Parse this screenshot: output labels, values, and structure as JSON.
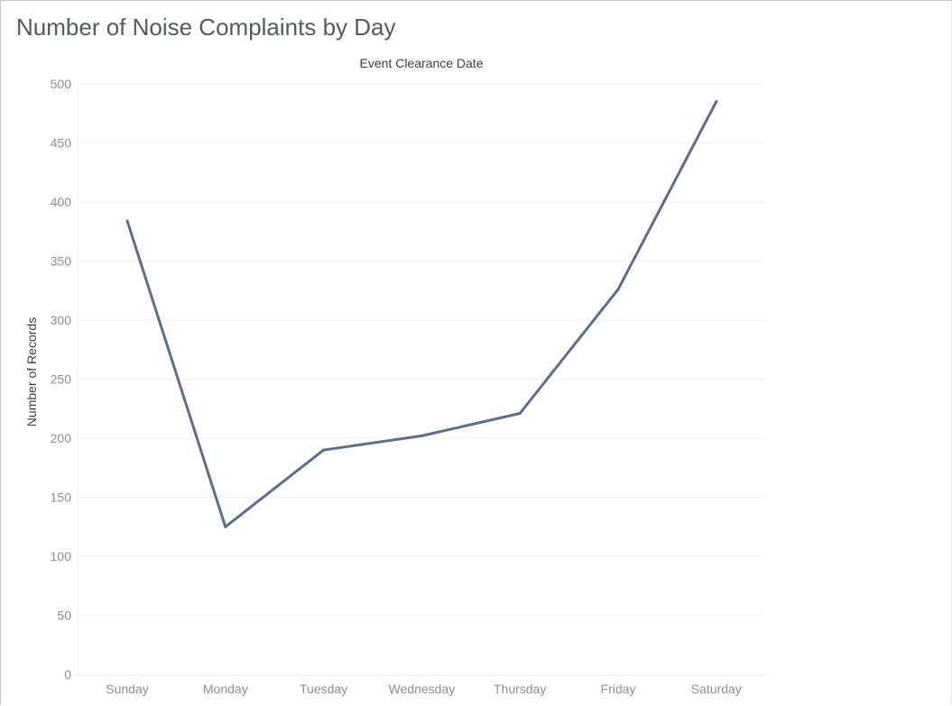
{
  "sheet": {
    "title": "Number of Noise Complaints by Day"
  },
  "chart_data": {
    "type": "line",
    "title": "",
    "column_header": "Event Clearance Date",
    "xlabel": "",
    "ylabel": "Number of Records",
    "categories": [
      "Sunday",
      "Monday",
      "Tuesday",
      "Wednesday",
      "Thursday",
      "Friday",
      "Saturday"
    ],
    "series": [
      {
        "values": [
          384,
          125,
          190,
          202,
          221,
          326,
          485
        ],
        "color": "#5b6f8d"
      }
    ],
    "ylim": [
      0,
      500
    ],
    "yticks": [
      0,
      50,
      100,
      150,
      200,
      250,
      300,
      350,
      400,
      450,
      500
    ],
    "grid": true,
    "legend": "none",
    "colors": {
      "line": "#5b6f8d",
      "grid": "#efefef",
      "tick_text": "#8b8f94",
      "label_text": "#3a3f46"
    }
  }
}
